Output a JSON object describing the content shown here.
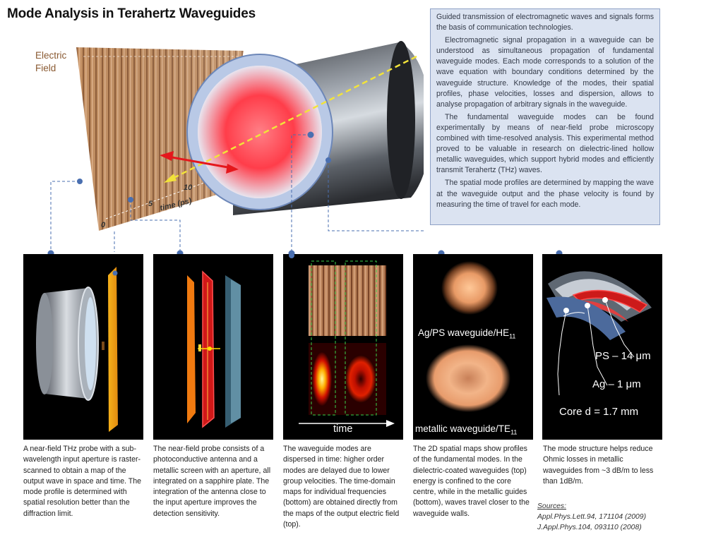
{
  "title": "Mode Analysis in Terahertz Waveguides",
  "info_paragraphs": [
    "Guided transmission of electromagnetic waves and signals forms the basis of communication technologies.",
    "Electromagnetic signal propagation in a waveguide can be understood as simultaneous propagation of fundamental waveguide modes. Each mode corresponds to a solution of the wave equation with boundary conditions determined by the waveguide structure. Knowledge of the modes, their spatial profiles, phase velocities, losses and dispersion, allows to analyse propagation of arbitrary signals in the waveguide.",
    "The fundamental waveguide modes can be found experimentally by means of near-field probe microscopy combined with time-resolved analysis. This experimental method proved to be valuable in research on dielectric-lined hollow metallic waveguides, which support hybrid modes and efficiently transmit Terahertz (THz) waves.",
    "The spatial mode profiles are determined by mapping the wave at the waveguide output and the phase velocity is found by measuring the time of travel for each mode."
  ],
  "hero": {
    "field_label_line1": "Electric",
    "field_label_line2": "Field",
    "tick_0": "0",
    "tick_5": "5",
    "tick_10": "10",
    "axis_label": "time (ps)"
  },
  "panels": {
    "p3_time_label": "time",
    "p4_top_label": "Ag/PS waveguide/HE",
    "p4_top_sub": "11",
    "p4_bottom_label": "metallic waveguide/TE",
    "p4_bottom_sub": "11",
    "p5_ps": "PS  – 14 μm",
    "p5_ag": "Ag  – 1 μm",
    "p5_core": "Core  d  = 1.7 mm"
  },
  "captions": [
    "A near-field THz probe with a sub-wavelength input aperture is raster-scanned to obtain a map of the output wave in space and time. The mode profile is determined with spatial resolution better than the diffraction limit.",
    "The near-field probe consists of a photoconductive antenna and a metallic screen with an aperture, all integrated on a sapphire plate. The integration of the antenna close to the input aperture improves the detection sensitivity.",
    "The waveguide modes are dispersed in time: higher order modes are delayed due to lower group velocities. The time-domain maps for individual frequencies (bottom) are obtained directly from the maps of the output electric field (top).",
    "The 2D spatial maps show profiles of the fundamental modes. In the dielectric-coated waveguides (top) energy is confined to the core centre, while in the metallic guides (bottom), waves travel closer to the waveguide walls.",
    "The mode structure helps reduce Ohmic losses in metallic  waveguides from ~3 dB/m to  less than 1dB/m."
  ],
  "sources": {
    "heading": "Sources:",
    "ref1": "Appl.Phys.Lett.94, 171104 (2009)",
    "ref2": "J.Appl.Phys.104, 093110 (2008)"
  },
  "colors": {
    "info_bg": "#dbe3f1",
    "connector": "#4a6fb0",
    "field_map": "#b8855a"
  }
}
